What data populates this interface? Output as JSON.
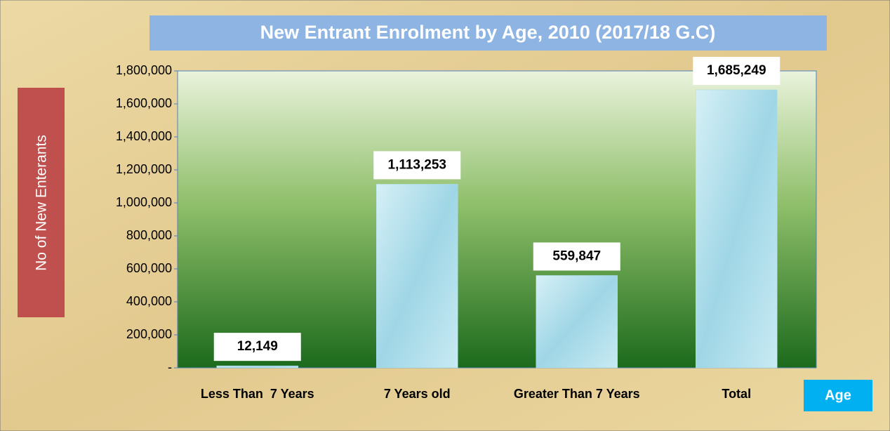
{
  "chart_data": {
    "type": "bar",
    "title": "New Entrant Enrolment by Age, 2010 (2017/18 G.C)",
    "y_label": "No of New Enterants",
    "x_label": "Age",
    "categories": [
      "Less Than  7 Years",
      "7 Years old",
      "Greater Than 7 Years",
      "Total"
    ],
    "values": [
      12149,
      1113253,
      559847,
      1685249
    ],
    "value_labels": [
      "12,149",
      "1,113,253",
      "559,847",
      "1,685,249"
    ],
    "color": "#a9dcea",
    "ylim": [
      0,
      1800000
    ],
    "yticks": [
      {
        "value": 0,
        "label": "-"
      },
      {
        "value": 200000,
        "label": "200,000"
      },
      {
        "value": 400000,
        "label": "400,000"
      },
      {
        "value": 600000,
        "label": "600,000"
      },
      {
        "value": 800000,
        "label": "800,000"
      },
      {
        "value": 1000000,
        "label": "1,000,000"
      },
      {
        "value": 1200000,
        "label": "1,200,000"
      },
      {
        "value": 1400000,
        "label": "1,400,000"
      },
      {
        "value": 1600000,
        "label": "1,600,000"
      },
      {
        "value": 1800000,
        "label": "1,800,000"
      }
    ],
    "grid": false
  }
}
